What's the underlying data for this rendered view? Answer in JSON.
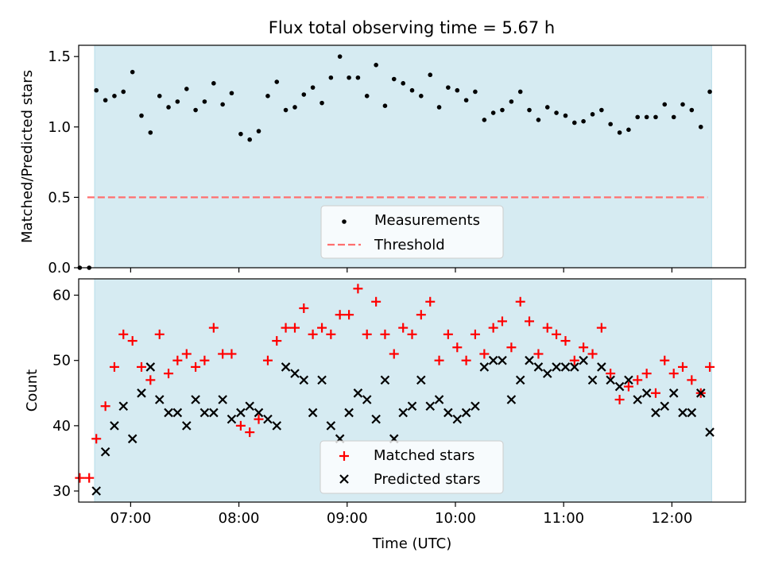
{
  "chart_data": {
    "title": "Flux total observing time = 5.67 h",
    "xlabel": "Time (UTC)",
    "x_unit": "hours UTC",
    "x_range": [
      6.52,
      12.68
    ],
    "x_ticks": [
      {
        "value": 7,
        "label": "07:00"
      },
      {
        "value": 8,
        "label": "08:00"
      },
      {
        "value": 9,
        "label": "09:00"
      },
      {
        "value": 10,
        "label": "10:00"
      },
      {
        "value": 11,
        "label": "11:00"
      },
      {
        "value": 12,
        "label": "12:00"
      }
    ],
    "observing_window": [
      6.667,
      12.367
    ],
    "observing_window_color": "#add8e6",
    "panels": [
      {
        "type": "scatter",
        "ylabel": "Matched/Predicted stars",
        "ylim": [
          0,
          1.58
        ],
        "y_ticks": [
          "0.0",
          "0.5",
          "1.0",
          "1.5"
        ],
        "threshold": {
          "name": "Threshold",
          "y": 0.5,
          "x": [
            6.6,
            12.33
          ],
          "color": "#ff6f6f"
        },
        "legend": [
          "Measurements",
          "Threshold"
        ],
        "legend_position": "lower center",
        "series": [
          {
            "name": "Measurements",
            "marker": "dot",
            "color": "#000000",
            "x": [
              6.53,
              6.617,
              6.683,
              6.767,
              6.85,
              6.933,
              7.017,
              7.1,
              7.183,
              7.267,
              7.35,
              7.433,
              7.517,
              7.6,
              7.683,
              7.767,
              7.85,
              7.933,
              8.017,
              8.1,
              8.183,
              8.267,
              8.35,
              8.433,
              8.517,
              8.6,
              8.683,
              8.767,
              8.85,
              8.933,
              9.017,
              9.1,
              9.183,
              9.267,
              9.35,
              9.433,
              9.517,
              9.6,
              9.683,
              9.767,
              9.85,
              9.933,
              10.017,
              10.1,
              10.183,
              10.267,
              10.35,
              10.433,
              10.517,
              10.6,
              10.683,
              10.767,
              10.85,
              10.933,
              11.017,
              11.1,
              11.183,
              11.267,
              11.35,
              11.433,
              11.517,
              11.6,
              11.683,
              11.767,
              11.85,
              11.933,
              12.017,
              12.1,
              12.183,
              12.267,
              12.35
            ],
            "y": [
              0,
              0,
              1.26,
              1.19,
              1.22,
              1.25,
              1.39,
              1.08,
              0.96,
              1.22,
              1.14,
              1.18,
              1.27,
              1.12,
              1.18,
              1.31,
              1.16,
              1.24,
              0.95,
              0.91,
              0.97,
              1.22,
              1.32,
              1.12,
              1.14,
              1.23,
              1.28,
              1.17,
              1.35,
              1.5,
              1.35,
              1.35,
              1.22,
              1.44,
              1.15,
              1.34,
              1.31,
              1.26,
              1.22,
              1.37,
              1.14,
              1.28,
              1.26,
              1.19,
              1.25,
              1.05,
              1.1,
              1.12,
              1.18,
              1.25,
              1.12,
              1.05,
              1.14,
              1.1,
              1.08,
              1.03,
              1.04,
              1.09,
              1.12,
              1.02,
              0.96,
              0.98,
              1.07,
              1.07,
              1.07,
              1.16,
              1.07,
              1.16,
              1.12,
              1.0,
              1.25
            ]
          }
        ]
      },
      {
        "type": "scatter",
        "ylabel": "Count",
        "ylim": [
          28.3,
          62.5
        ],
        "y_ticks": [
          "30",
          "40",
          "50",
          "60"
        ],
        "legend": [
          "Matched stars",
          "Predicted stars"
        ],
        "legend_position": "lower center",
        "series": [
          {
            "name": "Matched stars",
            "marker": "plus",
            "color": "#ff0000",
            "x": [
              6.53,
              6.617,
              6.683,
              6.767,
              6.85,
              6.933,
              7.017,
              7.1,
              7.183,
              7.267,
              7.35,
              7.433,
              7.517,
              7.6,
              7.683,
              7.767,
              7.85,
              7.933,
              8.017,
              8.1,
              8.183,
              8.267,
              8.35,
              8.433,
              8.517,
              8.6,
              8.683,
              8.767,
              8.85,
              8.933,
              9.017,
              9.1,
              9.183,
              9.267,
              9.35,
              9.433,
              9.517,
              9.6,
              9.683,
              9.767,
              9.85,
              9.933,
              10.017,
              10.1,
              10.183,
              10.267,
              10.35,
              10.433,
              10.517,
              10.6,
              10.683,
              10.767,
              10.85,
              10.933,
              11.017,
              11.1,
              11.183,
              11.267,
              11.35,
              11.433,
              11.517,
              11.6,
              11.683,
              11.767,
              11.85,
              11.933,
              12.017,
              12.1,
              12.183,
              12.267,
              12.35
            ],
            "y": [
              32,
              32,
              38,
              43,
              49,
              54,
              53,
              49,
              47,
              54,
              48,
              50,
              51,
              49,
              50,
              55,
              51,
              51,
              40,
              39,
              41,
              50,
              53,
              55,
              55,
              58,
              54,
              55,
              54,
              57,
              57,
              61,
              54,
              59,
              54,
              51,
              55,
              54,
              57,
              59,
              50,
              54,
              52,
              50,
              54,
              51,
              55,
              56,
              52,
              59,
              56,
              51,
              55,
              54,
              53,
              50,
              52,
              51,
              55,
              48,
              44,
              46,
              47,
              48,
              45,
              50,
              48,
              49,
              47,
              45,
              49
            ]
          },
          {
            "name": "Predicted stars",
            "marker": "x",
            "color": "#000000",
            "x": [
              6.683,
              6.767,
              6.85,
              6.933,
              7.017,
              7.1,
              7.183,
              7.267,
              7.35,
              7.433,
              7.517,
              7.6,
              7.683,
              7.767,
              7.85,
              7.933,
              8.017,
              8.1,
              8.183,
              8.267,
              8.35,
              8.433,
              8.517,
              8.6,
              8.683,
              8.767,
              8.85,
              8.933,
              9.017,
              9.1,
              9.183,
              9.267,
              9.35,
              9.433,
              9.517,
              9.6,
              9.683,
              9.767,
              9.85,
              9.933,
              10.017,
              10.1,
              10.183,
              10.267,
              10.35,
              10.433,
              10.517,
              10.6,
              10.683,
              10.767,
              10.85,
              10.933,
              11.017,
              11.1,
              11.183,
              11.267,
              11.35,
              11.433,
              11.517,
              11.6,
              11.683,
              11.767,
              11.85,
              11.933,
              12.017,
              12.1,
              12.183,
              12.267,
              12.35
            ],
            "y": [
              30,
              36,
              40,
              43,
              38,
              45,
              49,
              44,
              42,
              42,
              40,
              44,
              42,
              42,
              44,
              41,
              42,
              43,
              42,
              41,
              40,
              49,
              48,
              47,
              42,
              47,
              40,
              38,
              42,
              45,
              44,
              41,
              47,
              38,
              42,
              43,
              47,
              43,
              44,
              42,
              41,
              42,
              43,
              49,
              50,
              50,
              44,
              47,
              50,
              49,
              48,
              49,
              49,
              49,
              50,
              47,
              49,
              47,
              46,
              47,
              44,
              45,
              42,
              43,
              45,
              42,
              42,
              45,
              39
            ]
          }
        ]
      }
    ]
  }
}
